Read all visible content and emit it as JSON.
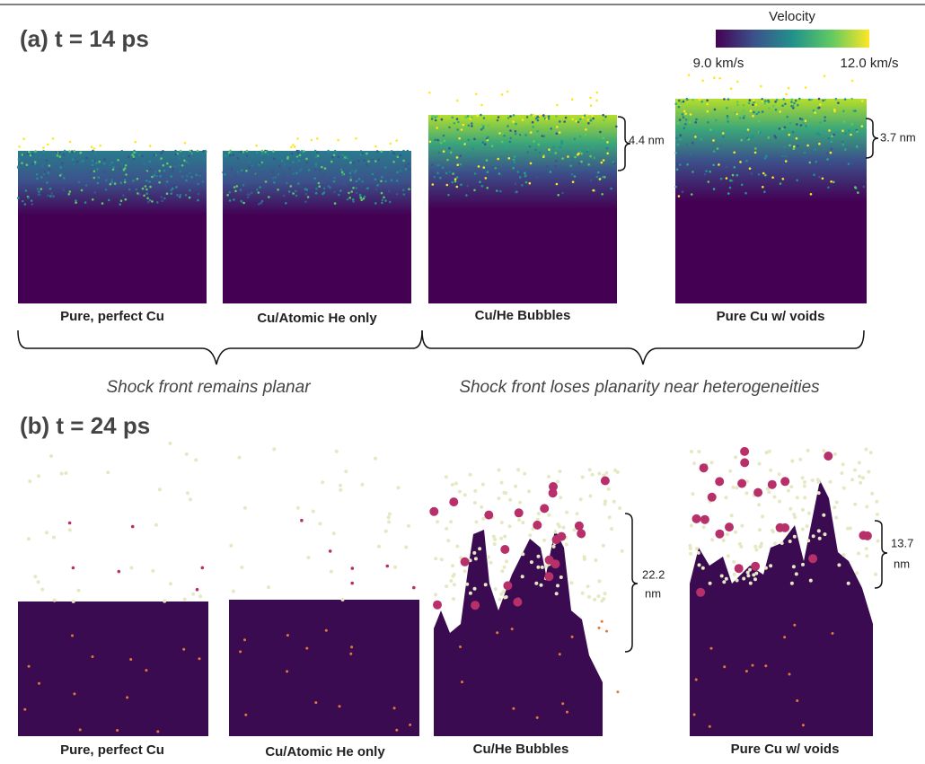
{
  "panel_a": {
    "label": "(a) t = 14 ps",
    "colorbar": {
      "title": "Velocity",
      "min_label": "9.0 km/s",
      "max_label": "12.0 km/s"
    },
    "panels": [
      "Pure, perfect Cu",
      "Cu/Atomic He only",
      "Cu/He Bubbles",
      "Pure Cu w/ voids"
    ],
    "annotations": [
      "4.4 nm",
      "3.7 nm"
    ]
  },
  "captions": [
    "Shock front remains planar",
    "Shock front loses planarity near heterogeneities"
  ],
  "panel_b": {
    "label": "(b) t = 24 ps",
    "panels": [
      "Pure, perfect Cu",
      "Cu/Atomic He only",
      "Cu/He Bubbles",
      "Pure Cu w/ voids"
    ],
    "annotations": [
      [
        "22.2",
        "nm"
      ],
      [
        "13.7",
        "nm"
      ]
    ]
  }
}
